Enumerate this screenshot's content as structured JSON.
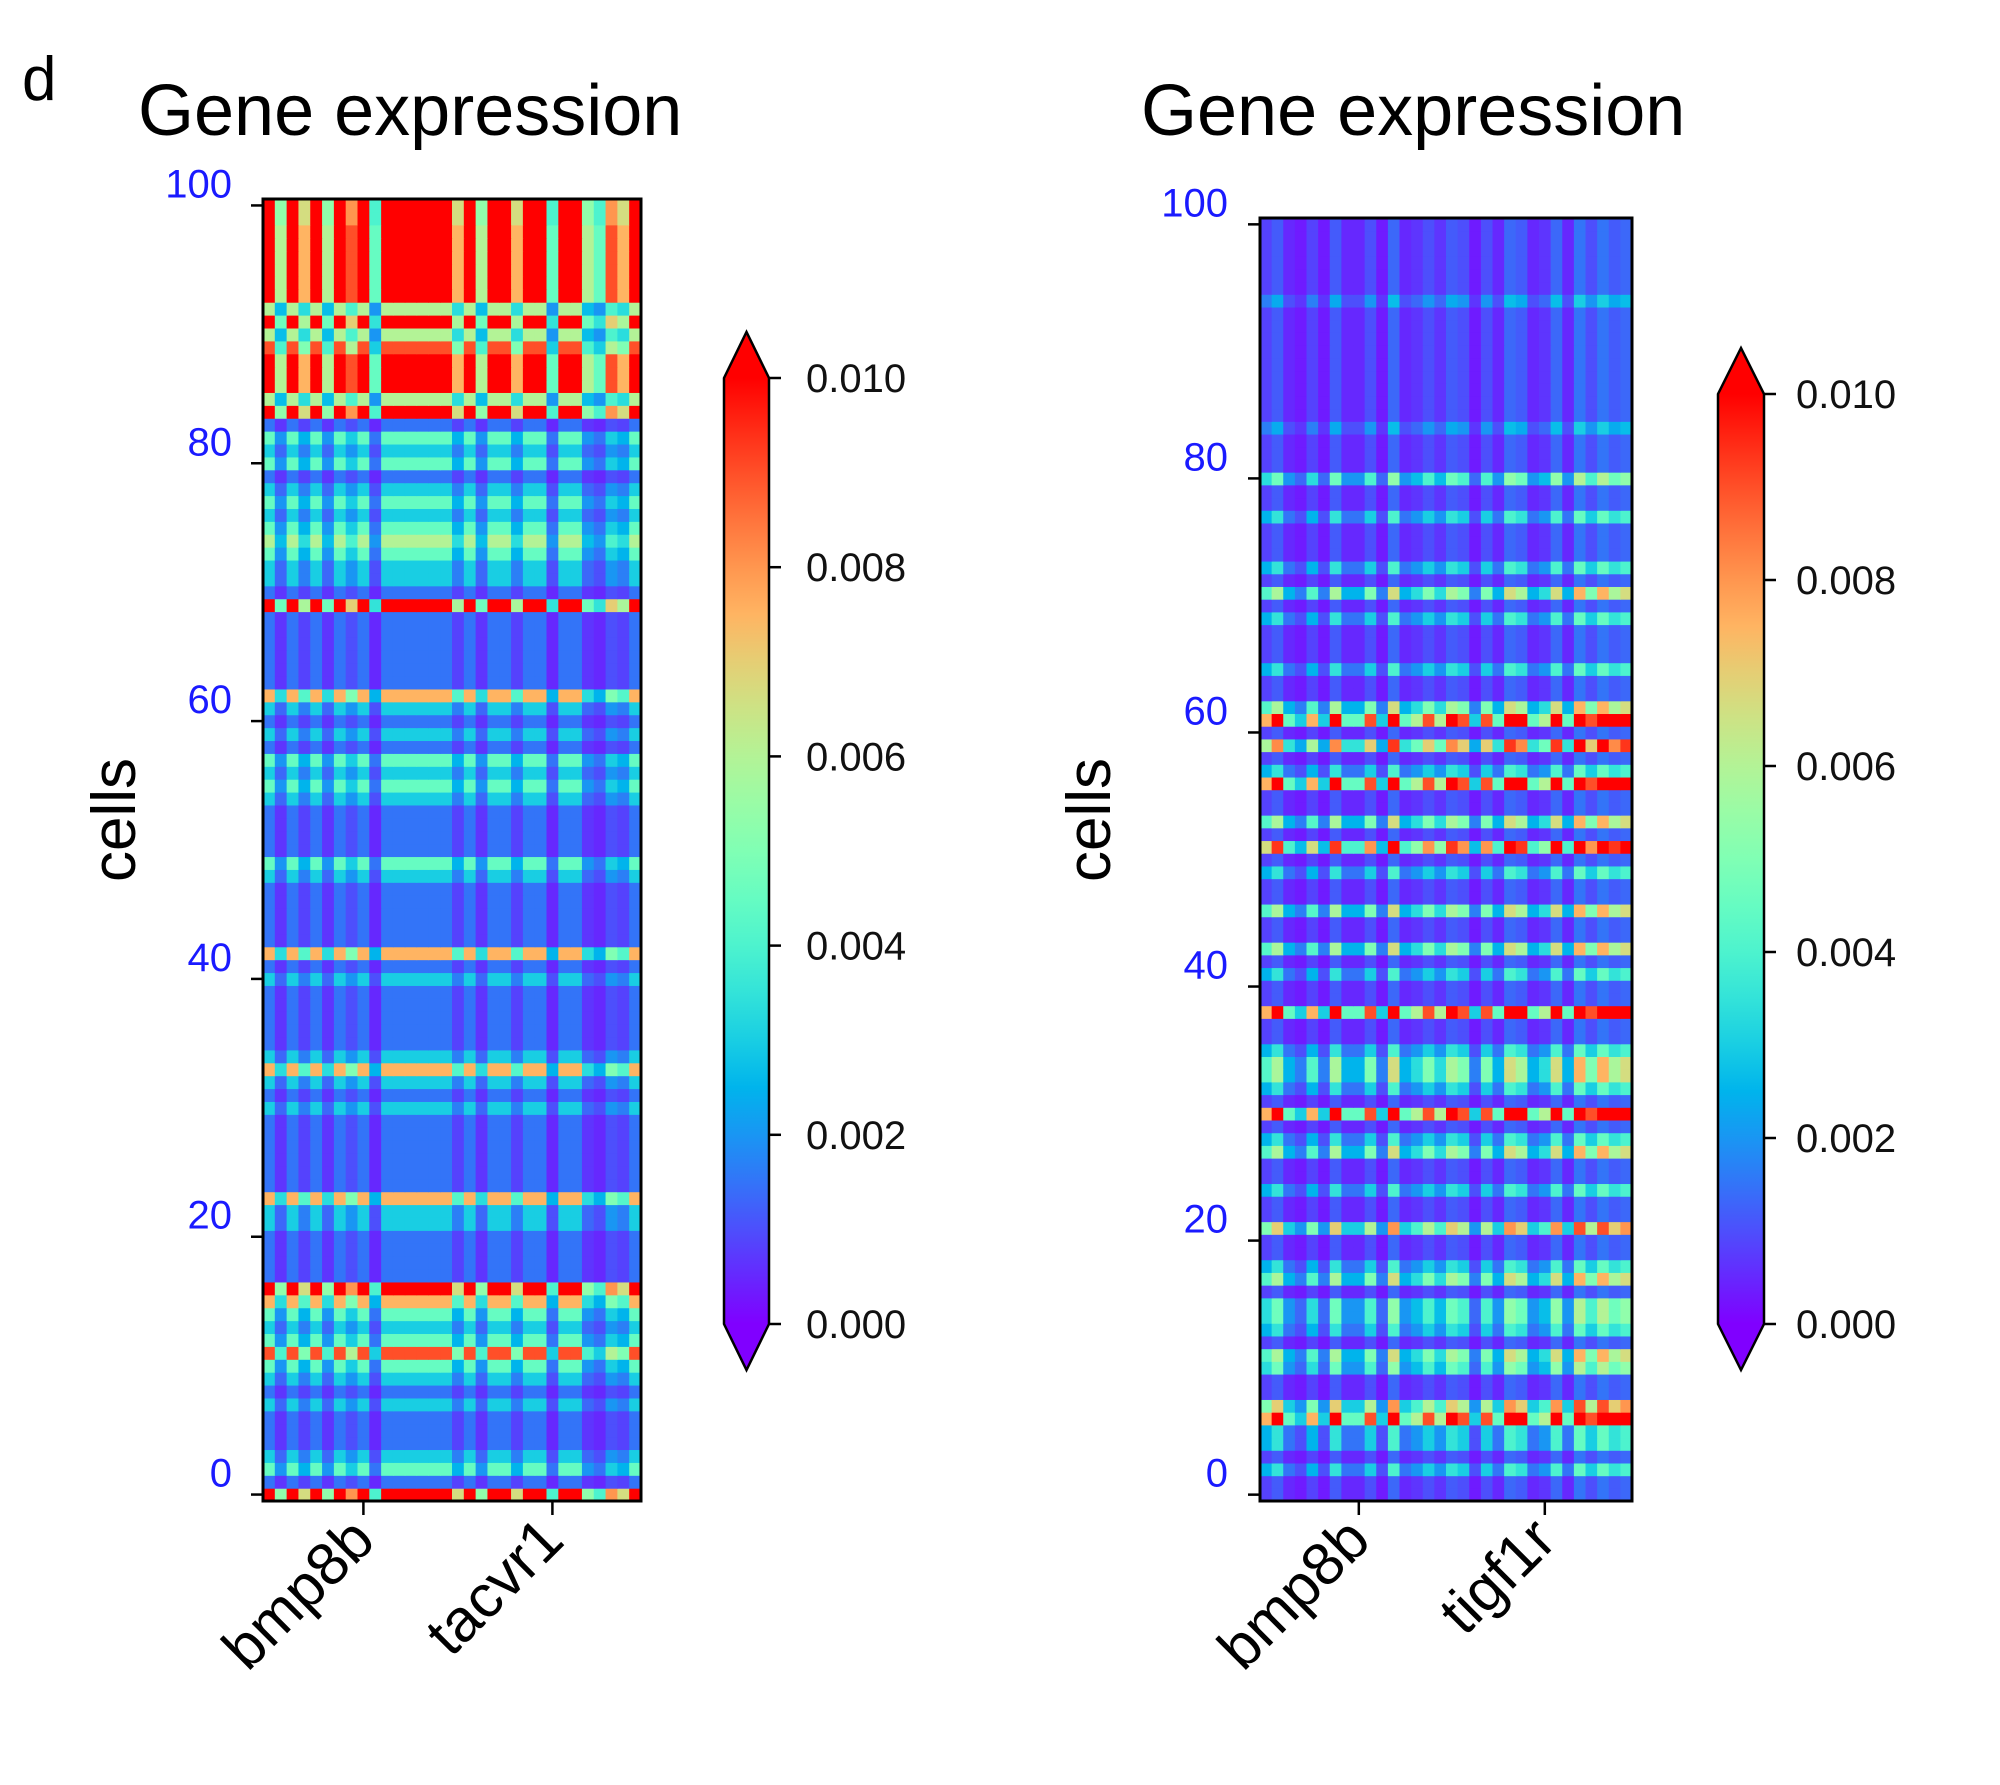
{
  "panel_label": "d",
  "chart_data": [
    {
      "type": "heatmap",
      "title": "Gene expression",
      "ylabel": "cells",
      "xlabel": "",
      "xticklabels": [
        "bmp8b",
        "tacvr1"
      ],
      "xtick_columns": [
        8,
        24
      ],
      "yticks": [
        0,
        20,
        40,
        60,
        80,
        100
      ],
      "yticklabels": [
        "0",
        "20",
        "40",
        "60",
        "80",
        "100"
      ],
      "n_rows": 101,
      "n_cols": 32,
      "colormap": "rainbow",
      "vmin": 0.0,
      "vmax": 0.01,
      "colorbar_extend": "both",
      "colorbar_ticks": [
        0.0,
        0.002,
        0.004,
        0.006,
        0.008,
        0.01
      ],
      "colorbar_ticklabels": [
        "0.000",
        "0.002",
        "0.004",
        "0.006",
        "0.008",
        "0.010"
      ],
      "row_levels": "81321112123632358111122511111121252111112151111123111123231212511111171223432321323184999647499999988",
      "col_levels": [
        9,
        4,
        9,
        5,
        9,
        4,
        9,
        6,
        9,
        3,
        9,
        9,
        9,
        9,
        9,
        9,
        5,
        9,
        4,
        9,
        9,
        5,
        9,
        9,
        3,
        9,
        9,
        4,
        3,
        6,
        5,
        9
      ],
      "value_note": "cell value = vmax * min(1, row_level * col_level / 60)"
    },
    {
      "type": "heatmap",
      "title": "Gene expression",
      "ylabel": "cells",
      "xlabel": "",
      "xticklabels": [
        "bmp8b",
        "tigf1r"
      ],
      "xtick_columns": [
        8,
        24
      ],
      "yticks": [
        0,
        20,
        40,
        60,
        80,
        100
      ],
      "yticklabels": [
        "0",
        "20",
        "40",
        "60",
        "80",
        "100"
      ],
      "n_rows": 101,
      "n_cols": 32,
      "colormap": "rainbow",
      "vmin": 0.0,
      "vmax": 0.01,
      "colorbar_extend": "both",
      "colorbar_ticks": [
        0.0,
        0.002,
        0.004,
        0.006,
        0.008,
        0.01
      ],
      "colorbar_ticklabels": [
        "0.000",
        "0.002",
        "0.004",
        "0.006",
        "0.008",
        "0.010"
      ],
      "row_levels": "11313396114513441531161131153191355311911315115113181511931719511311131513111311411121111111112111111",
      "col_levels": [
        5,
        7,
        3,
        2,
        5,
        2,
        7,
        3,
        3,
        6,
        2,
        8,
        3,
        4,
        6,
        4,
        7,
        6,
        2,
        6,
        3,
        8,
        7,
        3,
        4,
        8,
        3,
        9,
        6,
        9,
        7,
        8
      ],
      "value_note": "cell value = vmax * min(1, row_level * col_level / 60)"
    }
  ]
}
